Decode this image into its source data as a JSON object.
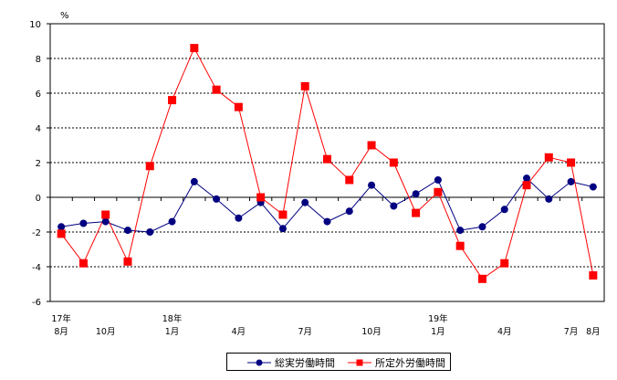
{
  "chart_data": {
    "type": "line",
    "ylabel": "%",
    "ylim": [
      -6,
      10
    ],
    "yticks": [
      -6,
      -4,
      -2,
      0,
      2,
      4,
      6,
      8,
      10
    ],
    "grid": "dashed horizontal",
    "legend": "bottom-center",
    "x_tick_labels": [
      {
        "index": 0,
        "top": "17年",
        "bottom": "8月"
      },
      {
        "index": 2,
        "top": "",
        "bottom": "10月"
      },
      {
        "index": 5,
        "top": "18年",
        "bottom": "1月"
      },
      {
        "index": 8,
        "top": "",
        "bottom": "4月"
      },
      {
        "index": 11,
        "top": "",
        "bottom": "7月"
      },
      {
        "index": 14,
        "top": "",
        "bottom": "10月"
      },
      {
        "index": 17,
        "top": "19年",
        "bottom": "1月"
      },
      {
        "index": 20,
        "top": "",
        "bottom": "4月"
      },
      {
        "index": 23,
        "top": "",
        "bottom": "7月"
      },
      {
        "index": 24,
        "top": "",
        "bottom": "8月"
      }
    ],
    "series": [
      {
        "name": "総実労働時間",
        "color": "#000080",
        "marker": "circle",
        "values": [
          -1.7,
          -1.5,
          -1.4,
          -1.9,
          -2.0,
          -1.4,
          0.9,
          -0.1,
          -1.2,
          -0.3,
          -1.8,
          -0.3,
          -1.4,
          -0.8,
          0.7,
          -0.5,
          0.2,
          1.0,
          -1.9,
          -1.7,
          -0.7,
          1.1,
          -0.1,
          0.9,
          0.6
        ]
      },
      {
        "name": "所定外労働時間",
        "color": "#ff0000",
        "marker": "square",
        "values": [
          -2.1,
          -3.8,
          -1.0,
          -3.7,
          1.8,
          5.6,
          8.6,
          6.2,
          5.2,
          0.0,
          -1.0,
          6.4,
          2.2,
          1.0,
          3.0,
          2.0,
          -0.9,
          0.3,
          -2.8,
          -4.7,
          -3.8,
          0.7,
          2.3,
          2.0,
          -4.5
        ]
      }
    ]
  }
}
